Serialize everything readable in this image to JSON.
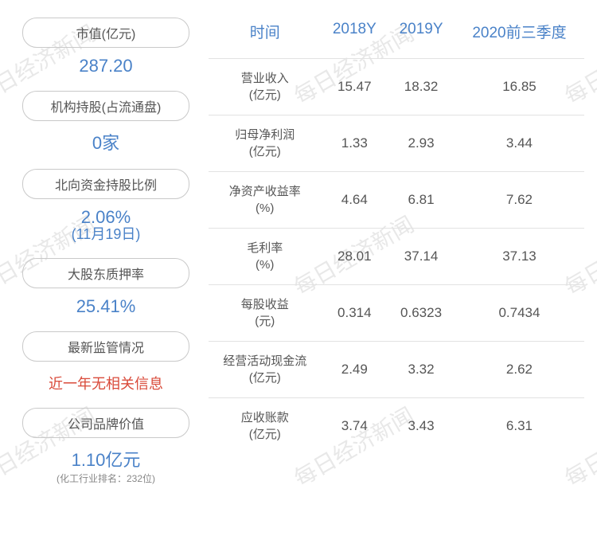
{
  "watermark": "每日经济新闻",
  "left": {
    "items": [
      {
        "label": "市值(亿元)",
        "value": "287.20",
        "sub": null,
        "color": "blue",
        "footnote": null
      },
      {
        "label": "机构持股(占流通盘)",
        "value": "0家",
        "sub": null,
        "color": "blue",
        "footnote": null
      },
      {
        "label": "北向资金持股比例",
        "value": "2.06%",
        "sub": "(11月19日)",
        "color": "blue",
        "footnote": null
      },
      {
        "label": "大股东质押率",
        "value": "25.41%",
        "sub": null,
        "color": "blue",
        "footnote": null
      },
      {
        "label": "最新监管情况",
        "value": "近一年无相关信息",
        "sub": null,
        "color": "red",
        "footnote": null
      },
      {
        "label": "公司品牌价值",
        "value": "1.10亿元",
        "sub": null,
        "color": "blue",
        "footnote": "(化工行业排名：232位)"
      }
    ]
  },
  "table": {
    "headers": [
      "时间",
      "2018Y",
      "2019Y",
      "2020前三季度"
    ],
    "rows": [
      {
        "label": "营业收入\n(亿元)",
        "cells": [
          "15.47",
          "18.32",
          "16.85"
        ]
      },
      {
        "label": "归母净利润\n(亿元)",
        "cells": [
          "1.33",
          "2.93",
          "3.44"
        ]
      },
      {
        "label": "净资产收益率\n(%)",
        "cells": [
          "4.64",
          "6.81",
          "7.62"
        ]
      },
      {
        "label": "毛利率\n(%)",
        "cells": [
          "28.01",
          "37.14",
          "37.13"
        ]
      },
      {
        "label": "每股收益\n(元)",
        "cells": [
          "0.314",
          "0.6323",
          "0.7434"
        ]
      },
      {
        "label": "经营活动现金流\n(亿元)",
        "cells": [
          "2.49",
          "3.32",
          "2.62"
        ]
      },
      {
        "label": "应收账款\n(亿元)",
        "cells": [
          "3.74",
          "3.43",
          "6.31"
        ]
      }
    ]
  }
}
